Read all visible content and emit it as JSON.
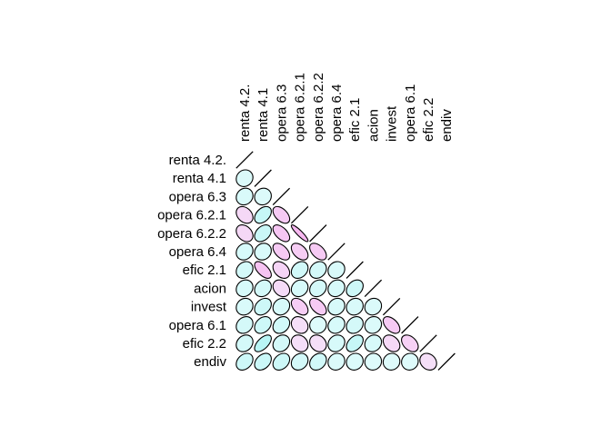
{
  "chart_data": {
    "type": "heatmap",
    "variables": [
      "renta 4.2.",
      "renta 4.1",
      "opera 6.3",
      "opera 6.2.1",
      "opera 6.2.2",
      "opera 6.4",
      "efic 2.1",
      "acion",
      "invest",
      "opera 6.1",
      "efic 2.2",
      "endiv"
    ],
    "column_labels": [
      "renta 4.2.",
      "renta 4.1",
      "opera 6.3",
      "opera 6.2.1",
      "opera 6.2.2",
      "opera 6.4",
      "efic 2.1",
      "acion",
      "invest",
      "opera 6.1",
      "efic 2.2",
      "endiv"
    ],
    "correlations": [
      [
        1.0
      ],
      [
        0.1,
        1.0
      ],
      [
        0.12,
        0.08,
        1.0
      ],
      [
        -0.3,
        0.4,
        -0.5,
        1.0
      ],
      [
        -0.3,
        0.35,
        -0.55,
        -0.9,
        1.0
      ],
      [
        0.15,
        0.12,
        -0.5,
        -0.45,
        -0.5,
        1.0
      ],
      [
        0.2,
        -0.6,
        -0.35,
        0.25,
        0.2,
        0.12,
        1.0
      ],
      [
        0.15,
        0.2,
        -0.25,
        0.15,
        0.2,
        0.15,
        0.3,
        1.0
      ],
      [
        0.12,
        0.3,
        0.15,
        -0.45,
        -0.5,
        0.15,
        0.12,
        0.1,
        1.0
      ],
      [
        0.2,
        0.3,
        0.25,
        -0.2,
        0.05,
        0.15,
        0.2,
        0.1,
        -0.5,
        1.0
      ],
      [
        0.2,
        0.6,
        0.2,
        -0.2,
        -0.2,
        0.15,
        0.4,
        0.15,
        -0.3,
        -0.4,
        1.0
      ],
      [
        0.3,
        0.35,
        0.3,
        0.2,
        0.25,
        0.1,
        0.1,
        0.05,
        0.05,
        0.05,
        -0.2,
        1.0
      ]
    ],
    "colors": {
      "positive": "#aef3f3",
      "negative": "#f7b8f0",
      "neutral": "#f3fefe",
      "outline": "#000000"
    },
    "layout": "lower-triangle",
    "glyph": "ellipse"
  }
}
